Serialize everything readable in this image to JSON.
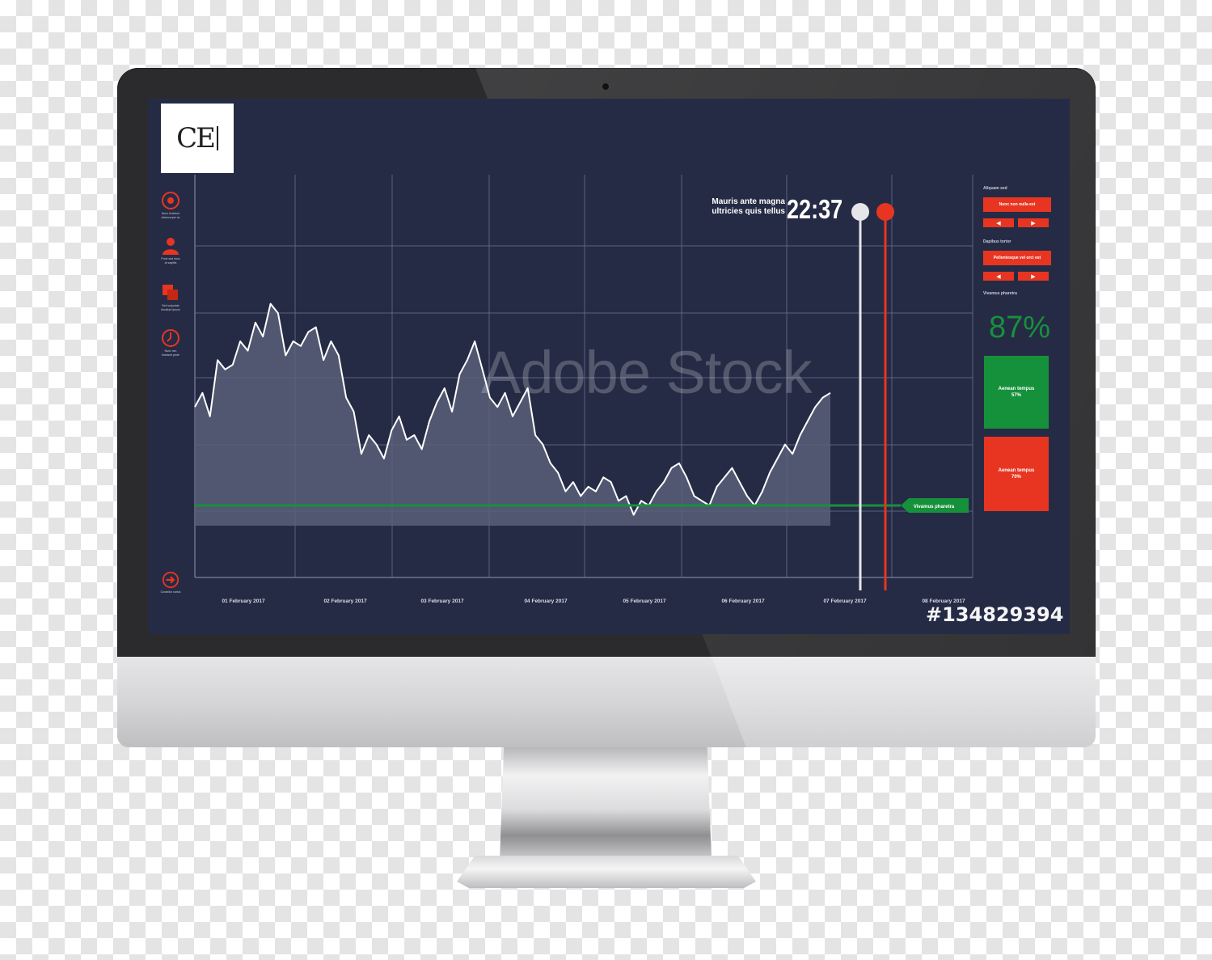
{
  "brand": {
    "logo_text": "CE"
  },
  "sidebar": {
    "tools": [
      {
        "label": "Nunc tincidunt\nullamcorper ac"
      },
      {
        "label": "Proin sed nunc\nat sagittis"
      },
      {
        "label": "Sed vulputate\ntincidunt ipsum"
      },
      {
        "label": "Nunc nec\ntincidunt pede"
      }
    ],
    "bottom_tool": {
      "label": "Curabitur varius"
    }
  },
  "chart_data": {
    "type": "line",
    "x_ticks": [
      "01 February 2017",
      "02 February 2017",
      "03 February 2017",
      "04 February 2017",
      "05 February 2017",
      "06 February 2017",
      "07 February 2017",
      "08 February 2017"
    ],
    "series": [
      {
        "values": [
          0.42,
          0.48,
          0.38,
          0.62,
          0.58,
          0.6,
          0.7,
          0.66,
          0.78,
          0.72,
          0.86,
          0.82,
          0.64,
          0.7,
          0.68,
          0.74,
          0.76,
          0.62,
          0.7,
          0.64,
          0.46,
          0.4,
          0.22,
          0.3,
          0.26,
          0.2,
          0.32,
          0.38,
          0.28,
          0.3,
          0.24,
          0.36,
          0.44,
          0.5,
          0.4,
          0.56,
          0.62,
          0.7,
          0.58,
          0.46,
          0.42,
          0.48,
          0.38,
          0.44,
          0.5,
          0.3,
          0.26,
          0.18,
          0.14,
          0.06,
          0.1,
          0.04,
          0.08,
          0.06,
          0.12,
          0.1,
          0.02,
          0.04,
          -0.04,
          0.02,
          0.0,
          0.06,
          0.1,
          0.16,
          0.18,
          0.12,
          0.04,
          0.02,
          0.0,
          0.08,
          0.12,
          0.16,
          0.1,
          0.04,
          0.0,
          0.06,
          0.14,
          0.2,
          0.26,
          0.22,
          0.3,
          0.36,
          0.42,
          0.46,
          0.48
        ]
      }
    ],
    "baseline": 0.0,
    "grid": true
  },
  "chart_labels": {
    "baseline_tag": "Vivamus pharetra"
  },
  "clock": {
    "caption_line1": "Mauris ante magna",
    "caption_line2": "ultricies quis tellus",
    "time": "22:37"
  },
  "panel": {
    "section1_heading": "Aliquam sed",
    "section1_button": "Nunc non nulla est",
    "section2_heading": "Dapibus tortor",
    "section2_button": "Pellentesque vel orci est",
    "section3_heading": "Vivamus pharetra",
    "arrow_left": "◀",
    "arrow_right": "▶",
    "percent": "87%",
    "green_button": {
      "title": "Aenean tempus",
      "value": "57%"
    },
    "red_button": {
      "title": "Aenean tempus",
      "value": "70%"
    }
  },
  "overlay": {
    "watermark": "Adobe Stock",
    "stock_id": "#134829394"
  },
  "colors": {
    "accent_red": "#e73522",
    "accent_green": "#16913b",
    "screen_bg": "#262b45",
    "grid": "#6c7294",
    "area_fill": "#5a5f79"
  }
}
